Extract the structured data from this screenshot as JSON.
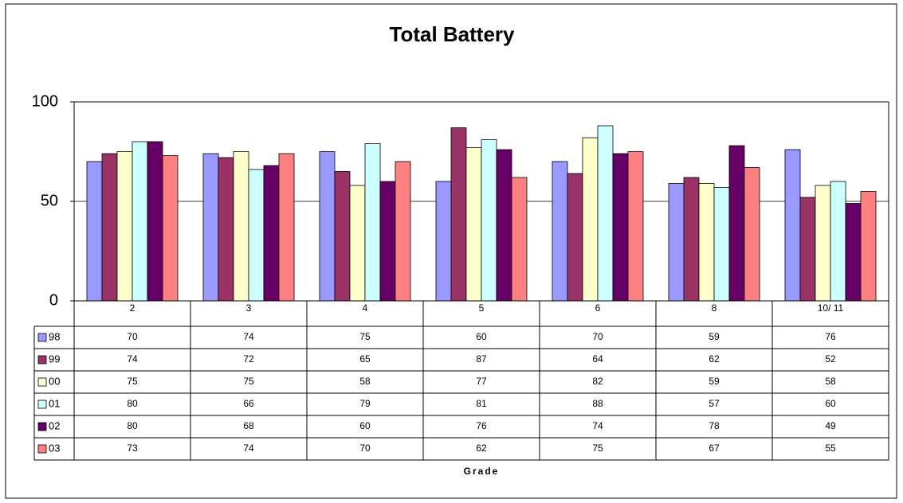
{
  "chart_data": {
    "type": "bar",
    "title": "Total Battery",
    "x_label": "Grade",
    "categories": [
      "2",
      "3",
      "4",
      "5",
      "6",
      "8",
      "10/ 11"
    ],
    "series": [
      {
        "name": "98",
        "color": "#9999ff",
        "values": [
          70,
          74,
          75,
          60,
          70,
          59,
          76
        ]
      },
      {
        "name": "99",
        "color": "#993366",
        "values": [
          74,
          72,
          65,
          87,
          64,
          62,
          52
        ]
      },
      {
        "name": "00",
        "color": "#ffffcc",
        "values": [
          75,
          75,
          58,
          77,
          82,
          59,
          58
        ]
      },
      {
        "name": "01",
        "color": "#ccffff",
        "values": [
          80,
          66,
          79,
          81,
          88,
          57,
          60
        ]
      },
      {
        "name": "02",
        "color": "#660066",
        "values": [
          80,
          68,
          60,
          76,
          74,
          78,
          49
        ]
      },
      {
        "name": "03",
        "color": "#ff8080",
        "values": [
          73,
          74,
          70,
          62,
          75,
          67,
          55
        ]
      }
    ],
    "ylim": [
      0,
      100
    ],
    "yticks": [
      0,
      50,
      100
    ],
    "grid": true,
    "data_table": true
  }
}
